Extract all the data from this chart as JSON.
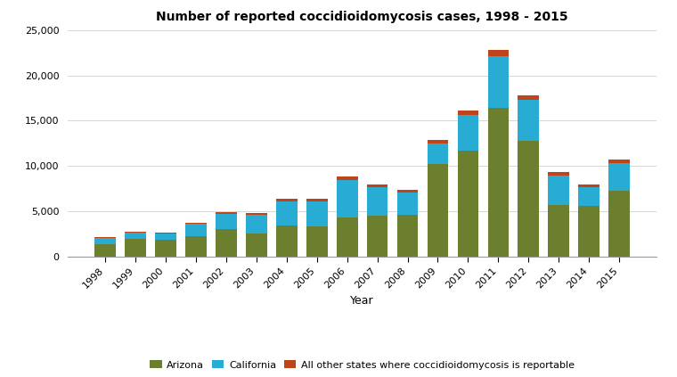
{
  "title": "Number of reported coccidioidomycosis cases, 1998 - 2015",
  "xlabel": "Year",
  "ylabel": "",
  "years": [
    1998,
    1999,
    2000,
    2001,
    2002,
    2003,
    2004,
    2005,
    2006,
    2007,
    2008,
    2009,
    2010,
    2011,
    2012,
    2013,
    2014,
    2015
  ],
  "arizona": [
    1300,
    1900,
    1800,
    2200,
    3000,
    2500,
    3400,
    3300,
    4300,
    4500,
    4600,
    10200,
    11700,
    16400,
    12800,
    5700,
    5600,
    7300
  ],
  "california": [
    700,
    700,
    700,
    1400,
    1700,
    2100,
    2700,
    2800,
    4100,
    3100,
    2500,
    2300,
    3900,
    5700,
    4500,
    3200,
    2000,
    3000
  ],
  "other": [
    100,
    150,
    150,
    150,
    200,
    200,
    300,
    300,
    400,
    300,
    300,
    400,
    500,
    700,
    500,
    400,
    300,
    400
  ],
  "arizona_color": "#6b7f2e",
  "california_color": "#29acd4",
  "other_color": "#c0441a",
  "ylim": [
    0,
    25000
  ],
  "yticks": [
    0,
    5000,
    10000,
    15000,
    20000,
    25000
  ],
  "legend_labels": [
    "Arizona",
    "California",
    "All other states where coccidioidomycosis is reportable"
  ],
  "background_color": "#ffffff",
  "bar_width": 0.7
}
